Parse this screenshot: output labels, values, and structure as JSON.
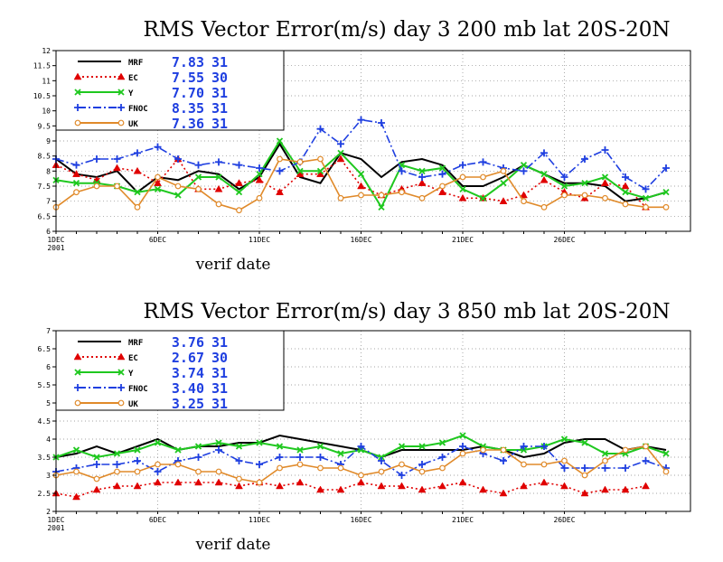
{
  "chart_data": [
    {
      "type": "line",
      "title": "RMS Vector Error(m/s) day 3  200 mb   lat 20S-20N",
      "xlabel": "verif date",
      "ylabel": "",
      "ylim": [
        6,
        12
      ],
      "ytick_labels": [
        "6",
        "6.5",
        "7",
        "7.5",
        "8",
        "8.5",
        "9",
        "9.5",
        "10",
        "10.5",
        "11",
        "11.5",
        "12"
      ],
      "x_tick_labels": [
        "1DEC",
        "6DEC",
        "11DEC",
        "16DEC",
        "21DEC",
        "26DEC"
      ],
      "x_year_label": "2001",
      "grid": true,
      "legend_position": "top-left",
      "x": [
        1,
        2,
        3,
        4,
        5,
        6,
        7,
        8,
        9,
        10,
        11,
        12,
        13,
        14,
        15,
        16,
        17,
        18,
        19,
        20,
        21,
        22,
        23,
        24,
        25,
        26,
        27,
        28,
        29,
        30,
        31
      ],
      "series": [
        {
          "name": "MRF",
          "legend_value": "7.83",
          "legend_count": "31",
          "color": "#000000",
          "dash": "",
          "marker": "none",
          "values": [
            8.4,
            7.9,
            7.8,
            8.0,
            7.3,
            7.8,
            7.7,
            8.0,
            7.9,
            7.4,
            7.8,
            8.9,
            7.8,
            7.6,
            8.6,
            8.4,
            7.8,
            8.3,
            8.4,
            8.2,
            7.5,
            7.5,
            7.8,
            8.2,
            7.9,
            7.6,
            7.6,
            7.5,
            7.0,
            7.1,
            7.3
          ]
        },
        {
          "name": "EC",
          "legend_value": "7.55",
          "legend_count": "30",
          "color": "#e00000",
          "dash": "2,3",
          "marker": "triangle",
          "values": [
            8.2,
            7.9,
            7.7,
            8.1,
            8.0,
            7.6,
            8.4,
            7.4,
            7.4,
            7.6,
            7.7,
            7.3,
            7.9,
            7.9,
            8.4,
            7.5,
            7.2,
            7.4,
            7.6,
            7.3,
            7.1,
            7.1,
            7.0,
            7.2,
            7.7,
            7.3,
            7.1,
            7.6,
            7.5,
            6.8,
            null
          ]
        },
        {
          "name": "Y",
          "legend_value": "7.70",
          "legend_count": "31",
          "color": "#1fc81f",
          "dash": "",
          "marker": "x",
          "values": [
            7.7,
            7.6,
            7.6,
            7.5,
            7.3,
            7.4,
            7.2,
            7.8,
            7.8,
            7.3,
            7.9,
            9.0,
            8.0,
            8.0,
            8.6,
            7.9,
            6.8,
            8.2,
            8.0,
            8.1,
            7.4,
            7.1,
            7.6,
            8.2,
            7.9,
            7.5,
            7.6,
            7.8,
            7.3,
            7.1,
            7.3
          ]
        },
        {
          "name": "FNOC",
          "legend_value": "8.35",
          "legend_count": "31",
          "color": "#1f3fe0",
          "dash": "9,3,2,3",
          "marker": "plus",
          "values": [
            8.4,
            8.2,
            8.4,
            8.4,
            8.6,
            8.8,
            8.4,
            8.2,
            8.3,
            8.2,
            8.1,
            8.0,
            8.3,
            9.4,
            8.9,
            9.7,
            9.6,
            8.0,
            7.8,
            7.9,
            8.2,
            8.3,
            8.1,
            8.0,
            8.6,
            7.8,
            8.4,
            8.7,
            7.8,
            7.4,
            8.1
          ]
        },
        {
          "name": "UK",
          "legend_value": "7.36",
          "legend_count": "31",
          "color": "#e08a2a",
          "dash": "",
          "marker": "circle",
          "values": [
            6.8,
            7.3,
            7.5,
            7.5,
            6.8,
            7.8,
            7.5,
            7.4,
            6.9,
            6.7,
            7.1,
            8.4,
            8.3,
            8.4,
            7.1,
            7.2,
            7.2,
            7.3,
            7.1,
            7.5,
            7.8,
            7.8,
            8.0,
            7.0,
            6.8,
            7.2,
            7.2,
            7.1,
            6.9,
            6.8,
            6.8
          ]
        }
      ]
    },
    {
      "type": "line",
      "title": "RMS Vector Error(m/s) day 3  850 mb   lat 20S-20N",
      "xlabel": "verif date",
      "ylabel": "",
      "ylim": [
        2,
        7
      ],
      "ytick_labels": [
        "2",
        "2.5",
        "3",
        "3.5",
        "4",
        "4.5",
        "5",
        "5.5",
        "6",
        "6.5",
        "7"
      ],
      "x_tick_labels": [
        "1DEC",
        "6DEC",
        "11DEC",
        "16DEC",
        "21DEC",
        "26DEC"
      ],
      "x_year_label": "2001",
      "grid": true,
      "legend_position": "top-left",
      "x": [
        1,
        2,
        3,
        4,
        5,
        6,
        7,
        8,
        9,
        10,
        11,
        12,
        13,
        14,
        15,
        16,
        17,
        18,
        19,
        20,
        21,
        22,
        23,
        24,
        25,
        26,
        27,
        28,
        29,
        30,
        31
      ],
      "series": [
        {
          "name": "MRF",
          "legend_value": "3.76",
          "legend_count": "31",
          "color": "#000000",
          "dash": "",
          "marker": "none",
          "values": [
            3.5,
            3.6,
            3.8,
            3.6,
            3.8,
            4.0,
            3.7,
            3.8,
            3.8,
            3.9,
            3.9,
            4.1,
            4.0,
            3.9,
            3.8,
            3.7,
            3.5,
            3.7,
            3.7,
            3.7,
            3.7,
            3.8,
            3.7,
            3.5,
            3.6,
            3.9,
            4.0,
            4.0,
            3.7,
            3.8,
            3.7
          ]
        },
        {
          "name": "EC",
          "legend_value": "2.67",
          "legend_count": "30",
          "color": "#e00000",
          "dash": "2,3",
          "marker": "triangle",
          "values": [
            2.5,
            2.4,
            2.6,
            2.7,
            2.7,
            2.8,
            2.8,
            2.8,
            2.8,
            2.7,
            2.8,
            2.7,
            2.8,
            2.6,
            2.6,
            2.8,
            2.7,
            2.7,
            2.6,
            2.7,
            2.8,
            2.6,
            2.5,
            2.7,
            2.8,
            2.7,
            2.5,
            2.6,
            2.6,
            2.7,
            null
          ]
        },
        {
          "name": "Y",
          "legend_value": "3.74",
          "legend_count": "31",
          "color": "#1fc81f",
          "dash": "",
          "marker": "x",
          "values": [
            3.5,
            3.7,
            3.5,
            3.6,
            3.7,
            3.9,
            3.7,
            3.8,
            3.9,
            3.8,
            3.9,
            3.8,
            3.7,
            3.8,
            3.6,
            3.7,
            3.5,
            3.8,
            3.8,
            3.9,
            4.1,
            3.8,
            3.7,
            3.7,
            3.8,
            4.0,
            3.9,
            3.6,
            3.6,
            3.8,
            3.6
          ]
        },
        {
          "name": "FNOC",
          "legend_value": "3.40",
          "legend_count": "31",
          "color": "#1f3fe0",
          "dash": "9,3,2,3",
          "marker": "plus",
          "values": [
            3.1,
            3.2,
            3.3,
            3.3,
            3.4,
            3.1,
            3.4,
            3.5,
            3.7,
            3.4,
            3.3,
            3.5,
            3.5,
            3.5,
            3.3,
            3.8,
            3.4,
            3.0,
            3.3,
            3.5,
            3.8,
            3.6,
            3.4,
            3.8,
            3.8,
            3.2,
            3.2,
            3.2,
            3.2,
            3.4,
            3.2
          ]
        },
        {
          "name": "UK",
          "legend_value": "3.25",
          "legend_count": "31",
          "color": "#e08a2a",
          "dash": "",
          "marker": "circle",
          "values": [
            3.0,
            3.1,
            2.9,
            3.1,
            3.1,
            3.3,
            3.3,
            3.1,
            3.1,
            2.9,
            2.8,
            3.2,
            3.3,
            3.2,
            3.2,
            3.0,
            3.1,
            3.3,
            3.1,
            3.2,
            3.6,
            3.7,
            3.7,
            3.3,
            3.3,
            3.4,
            3.0,
            3.4,
            3.7,
            3.8,
            3.1
          ]
        }
      ]
    }
  ]
}
